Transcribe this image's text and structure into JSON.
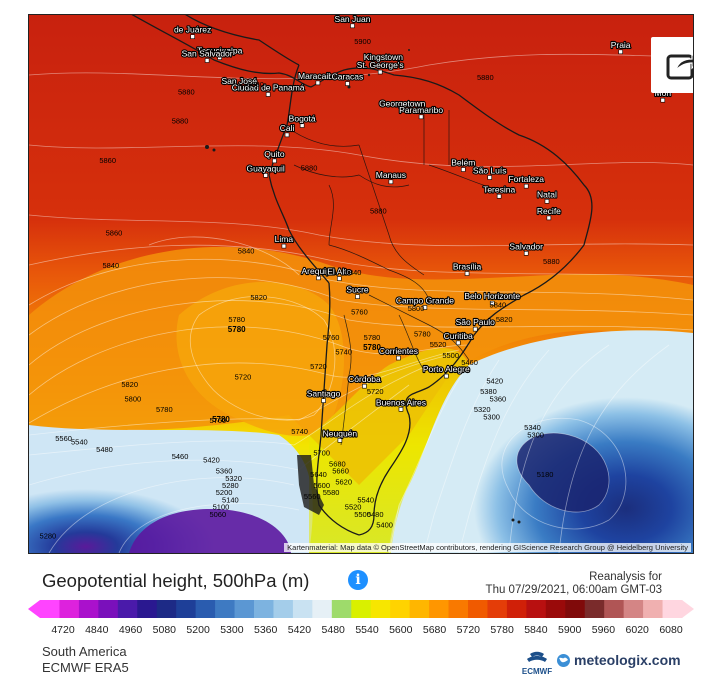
{
  "map": {
    "attribution": "Kartenmaterial: Map data © OpenStreetMap contributors, rendering GIScience Research Group @ Heidelberg University",
    "cities": [
      {
        "name": "Tegucigalpa",
        "lon": -87.2,
        "lat": 14.1
      },
      {
        "name": "San Salvador",
        "lon": -89.2,
        "lat": 13.7
      },
      {
        "name": "San José",
        "lon": -84.1,
        "lat": 9.9
      },
      {
        "name": "Ciudad de Panamá",
        "lon": -79.5,
        "lat": 9.0
      },
      {
        "name": "Maracaibo",
        "lon": -71.6,
        "lat": 10.6
      },
      {
        "name": "Caracas",
        "lon": -66.9,
        "lat": 10.5
      },
      {
        "name": "San Juan",
        "lon": -66.1,
        "lat": 18.5
      },
      {
        "name": "Kingstown",
        "lon": -61.2,
        "lat": 13.2
      },
      {
        "name": "St. George's",
        "lon": -61.7,
        "lat": 12.1
      },
      {
        "name": "Georgetown",
        "lon": -58.2,
        "lat": 6.8
      },
      {
        "name": "Paramaribo",
        "lon": -55.2,
        "lat": 5.9
      },
      {
        "name": "Bogotá",
        "lon": -74.1,
        "lat": 4.7
      },
      {
        "name": "Cali",
        "lon": -76.5,
        "lat": 3.4
      },
      {
        "name": "Quito",
        "lon": -78.5,
        "lat": -0.2
      },
      {
        "name": "Guayaquil",
        "lon": -79.9,
        "lat": -2.2
      },
      {
        "name": "Manaus",
        "lon": -60.0,
        "lat": -3.1
      },
      {
        "name": "Belém",
        "lon": -48.5,
        "lat": -1.4
      },
      {
        "name": "São Luís",
        "lon": -44.3,
        "lat": -2.5
      },
      {
        "name": "Fortaleza",
        "lon": -38.5,
        "lat": -3.7
      },
      {
        "name": "Teresina",
        "lon": -42.8,
        "lat": -5.1
      },
      {
        "name": "Natal",
        "lon": -35.2,
        "lat": -5.8
      },
      {
        "name": "Recife",
        "lon": -34.9,
        "lat": -8.1
      },
      {
        "name": "Salvador",
        "lon": -38.5,
        "lat": -13.0
      },
      {
        "name": "Lima",
        "lon": -77.0,
        "lat": -12.0
      },
      {
        "name": "Arequipa",
        "lon": -71.5,
        "lat": -16.4
      },
      {
        "name": "El Alto",
        "lon": -68.2,
        "lat": -16.5
      },
      {
        "name": "Sucre",
        "lon": -65.3,
        "lat": -19.0
      },
      {
        "name": "Brasília",
        "lon": -47.9,
        "lat": -15.8
      },
      {
        "name": "Belo Horizonte",
        "lon": -43.9,
        "lat": -19.9
      },
      {
        "name": "Campo Grande",
        "lon": -54.6,
        "lat": -20.5
      },
      {
        "name": "São Paulo",
        "lon": -46.6,
        "lat": -23.5
      },
      {
        "name": "Curitiba",
        "lon": -49.3,
        "lat": -25.4
      },
      {
        "name": "Corrientes",
        "lon": -58.8,
        "lat": -27.5
      },
      {
        "name": "Porto Alegre",
        "lon": -51.2,
        "lat": -30.0
      },
      {
        "name": "Córdoba",
        "lon": -64.2,
        "lat": -31.4
      },
      {
        "name": "Santiago",
        "lon": -70.7,
        "lat": -33.4
      },
      {
        "name": "Buenos Aires",
        "lon": -58.4,
        "lat": -34.6
      },
      {
        "name": "Neuquén",
        "lon": -68.1,
        "lat": -38.9
      },
      {
        "name": "Praia",
        "lon": -23.5,
        "lat": 14.9
      },
      {
        "name": "Mon",
        "lon": -16.8,
        "lat": 8.2
      },
      {
        "name": "de Juárez",
        "lon": -91.5,
        "lat": 17.0
      }
    ],
    "contour_labels": [
      {
        "v": "5900",
        "lon": -64.5,
        "lat": 16.0
      },
      {
        "v": "5880",
        "lon": -92.5,
        "lat": 9.0
      },
      {
        "v": "5880",
        "lon": -93.5,
        "lat": 5.0
      },
      {
        "v": "5860",
        "lon": -105.0,
        "lat": -0.5
      },
      {
        "v": "5880",
        "lon": -81.5,
        "lat": 10.0
      },
      {
        "v": "5880",
        "lon": -73.0,
        "lat": -1.5
      },
      {
        "v": "5880",
        "lon": -62.0,
        "lat": -7.5
      },
      {
        "v": "5880",
        "lon": -45.0,
        "lat": 11.0
      },
      {
        "v": "5880",
        "lon": -34.5,
        "lat": -14.5
      },
      {
        "v": "5860",
        "lon": -104.0,
        "lat": -10.5
      },
      {
        "v": "5840",
        "lon": -104.5,
        "lat": -15.0
      },
      {
        "v": "5840",
        "lon": -83.0,
        "lat": -13.0
      },
      {
        "v": "5820",
        "lon": -81.0,
        "lat": -19.5
      },
      {
        "v": "5780",
        "lon": -84.5,
        "lat": -22.5
      },
      {
        "v": "5840",
        "lon": -66.0,
        "lat": -16.0
      },
      {
        "v": "5840",
        "lon": -43.0,
        "lat": -20.5
      },
      {
        "v": "5820",
        "lon": -101.5,
        "lat": -31.5
      },
      {
        "v": "5800",
        "lon": -101.0,
        "lat": -33.5
      },
      {
        "v": "5780",
        "lon": -96.0,
        "lat": -35.0
      },
      {
        "v": "5760",
        "lon": -87.5,
        "lat": -36.5
      },
      {
        "v": "5720",
        "lon": -83.5,
        "lat": -30.5
      },
      {
        "v": "5720",
        "lon": -71.5,
        "lat": -29.0
      },
      {
        "v": "5760",
        "lon": -69.5,
        "lat": -25.0
      },
      {
        "v": "5740",
        "lon": -67.5,
        "lat": -27.0
      },
      {
        "v": "5780",
        "lon": -63.0,
        "lat": -25.0
      },
      {
        "v": "5780",
        "lon": -55.0,
        "lat": -24.5
      },
      {
        "v": "5740",
        "lon": -74.5,
        "lat": -38.0
      },
      {
        "v": "5760",
        "lon": -65.0,
        "lat": -21.5
      },
      {
        "v": "5800",
        "lon": -56.0,
        "lat": -21.0
      },
      {
        "v": "5820",
        "lon": -42.0,
        "lat": -22.5
      },
      {
        "v": "5720",
        "lon": -62.5,
        "lat": -32.5
      },
      {
        "v": "5700",
        "lon": -71.0,
        "lat": -41.0
      },
      {
        "v": "5680",
        "lon": -68.5,
        "lat": -42.5
      },
      {
        "v": "5660",
        "lon": -68.0,
        "lat": -43.5
      },
      {
        "v": "5640",
        "lon": -71.5,
        "lat": -44.0
      },
      {
        "v": "5620",
        "lon": -67.5,
        "lat": -45.0
      },
      {
        "v": "5600",
        "lon": -71.0,
        "lat": -45.5
      },
      {
        "v": "5580",
        "lon": -69.5,
        "lat": -46.5
      },
      {
        "v": "5560",
        "lon": -72.5,
        "lat": -47.0
      },
      {
        "v": "5540",
        "lon": -64.0,
        "lat": -47.5
      },
      {
        "v": "5520",
        "lon": -66.0,
        "lat": -48.5
      },
      {
        "v": "5500",
        "lon": -64.5,
        "lat": -49.5
      },
      {
        "v": "5480",
        "lon": -62.5,
        "lat": -49.5
      },
      {
        "v": "5400",
        "lon": -61.0,
        "lat": -51.0
      },
      {
        "v": "5560",
        "lon": -112.0,
        "lat": -39.0
      },
      {
        "v": "5540",
        "lon": -109.5,
        "lat": -39.5
      },
      {
        "v": "5480",
        "lon": -105.5,
        "lat": -40.5
      },
      {
        "v": "5460",
        "lon": -93.5,
        "lat": -41.5
      },
      {
        "v": "5420",
        "lon": -88.5,
        "lat": -42.0
      },
      {
        "v": "5360",
        "lon": -86.5,
        "lat": -43.5
      },
      {
        "v": "5320",
        "lon": -85.0,
        "lat": -44.5
      },
      {
        "v": "5280",
        "lon": -85.5,
        "lat": -45.5
      },
      {
        "v": "5200",
        "lon": -86.5,
        "lat": -46.5
      },
      {
        "v": "5140",
        "lon": -85.5,
        "lat": -47.5
      },
      {
        "v": "5100",
        "lon": -87.0,
        "lat": -48.5
      },
      {
        "v": "5060",
        "lon": -87.5,
        "lat": -49.5
      },
      {
        "v": "5280",
        "lon": -114.5,
        "lat": -52.5
      },
      {
        "v": "5520",
        "lon": -52.5,
        "lat": -26.0
      },
      {
        "v": "5500",
        "lon": -50.5,
        "lat": -27.5
      },
      {
        "v": "5460",
        "lon": -47.5,
        "lat": -28.5
      },
      {
        "v": "5420",
        "lon": -43.5,
        "lat": -31.0
      },
      {
        "v": "5380",
        "lon": -44.5,
        "lat": -32.5
      },
      {
        "v": "5360",
        "lon": -43.0,
        "lat": -33.5
      },
      {
        "v": "5320",
        "lon": -45.5,
        "lat": -35.0
      },
      {
        "v": "5300",
        "lon": -44.0,
        "lat": -36.0
      },
      {
        "v": "5180",
        "lon": -35.5,
        "lat": -44.0
      },
      {
        "v": "5340",
        "lon": -37.5,
        "lat": -37.5
      },
      {
        "v": "5300",
        "lon": -37.0,
        "lat": -38.5
      }
    ],
    "highlight_labels": [
      {
        "v": "5780",
        "lon": -84.5,
        "lat": -22.5
      },
      {
        "v": "5780",
        "lon": -87.0,
        "lat": -35.0
      },
      {
        "v": "5780",
        "lon": -63.0,
        "lat": -25.0
      }
    ]
  },
  "share_icon": "share-icon",
  "title": "Geopotential height, 500hPa (m)",
  "info_icon": "info-icon",
  "info_glyph": "i",
  "reanalysis_label": "Reanalysis for",
  "reanalysis_date": "Thu 07/29/2021, 06:00am GMT-03",
  "colorbar": {
    "ticks": [
      "4720",
      "4840",
      "4960",
      "5080",
      "5200",
      "5300",
      "5360",
      "5420",
      "5480",
      "5540",
      "5600",
      "5680",
      "5720",
      "5780",
      "5840",
      "5900",
      "5960",
      "6020",
      "6080"
    ],
    "colors": [
      "#ff44ff",
      "#dd22dd",
      "#aa11cc",
      "#7a10bb",
      "#4a1aaa",
      "#2a1890",
      "#1d2a86",
      "#1e3f98",
      "#2a5caf",
      "#3e7ac2",
      "#5b97d3",
      "#7db3e0",
      "#a4cdea",
      "#c9e2f2",
      "#e6f0f6",
      "#9edb6b",
      "#d9f000",
      "#f7e600",
      "#ffd300",
      "#ffb600",
      "#ff9600",
      "#f97900",
      "#f05a00",
      "#e43d08",
      "#d02008",
      "#b81010",
      "#9a0a0a",
      "#800a0a",
      "#7a2b2b",
      "#b05555",
      "#d48585",
      "#f0b0b0",
      "#ffd6e0"
    ]
  },
  "region": "South America",
  "model": "ECMWF ERA5",
  "ecmwf_logo_text": "ECMWF",
  "brand": "meteologix.com",
  "colors": {
    "accent": "#1e90ff",
    "brand": "#2a3f66",
    "ecmwf": "#1c4f8a"
  }
}
